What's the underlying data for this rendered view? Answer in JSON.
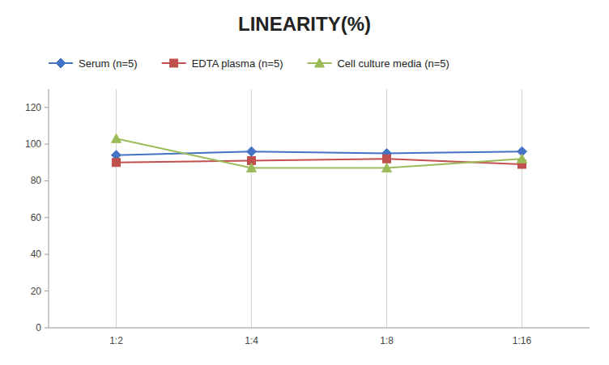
{
  "chart_data": {
    "type": "line",
    "title": "LINEARITY(%)",
    "categories": [
      "1:2",
      "1:4",
      "1:8",
      "1:16"
    ],
    "series": [
      {
        "name": "Serum (n=5)",
        "color": "#4472C4",
        "marker": "diamond",
        "values": [
          94,
          96,
          95,
          96
        ]
      },
      {
        "name": "EDTA plasma (n=5)",
        "color": "#C0504D",
        "marker": "square",
        "values": [
          90,
          91,
          92,
          89
        ]
      },
      {
        "name": "Cell culture media (n=5)",
        "color": "#9BBB59",
        "marker": "triangle",
        "values": [
          103,
          87,
          87,
          92
        ]
      }
    ],
    "ylim": [
      0,
      130
    ],
    "yticks": [
      0,
      20,
      40,
      60,
      80,
      100,
      120
    ],
    "grid": "x",
    "legend": "top"
  }
}
